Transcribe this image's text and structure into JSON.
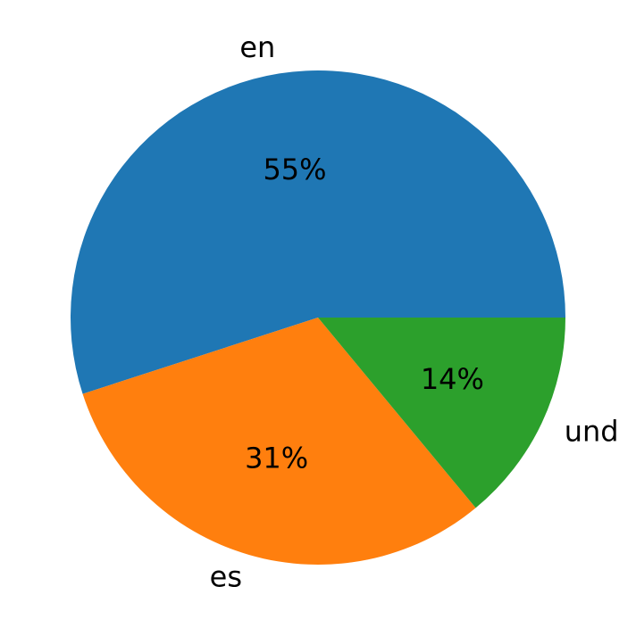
{
  "chart_data": {
    "type": "pie",
    "categories": [
      "en",
      "es",
      "und"
    ],
    "values": [
      55,
      31,
      14
    ],
    "value_labels": [
      "55%",
      "31%",
      "14%"
    ],
    "colors": [
      "#1f77b4",
      "#ff7f0e",
      "#2ca02c"
    ]
  }
}
